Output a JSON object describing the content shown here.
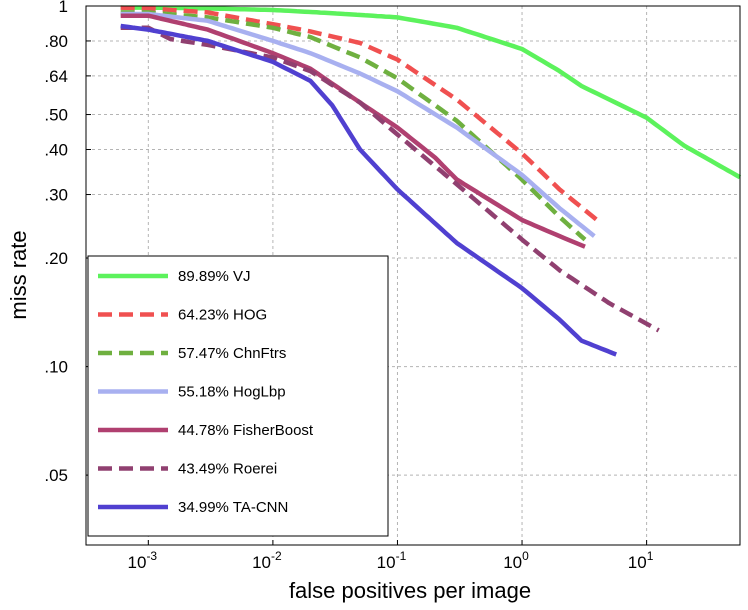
{
  "chart_data": {
    "type": "line",
    "title": "",
    "xlabel": "false positives per image",
    "ylabel": "miss rate",
    "xscale": "log",
    "yscale": "log",
    "xlim": [
      0.000316,
      56.2
    ],
    "ylim": [
      0.032,
      1.0
    ],
    "grid": true,
    "legend_position": "bottom-left",
    "x_ticks": [
      {
        "value": 0.001,
        "base": "10",
        "exp": "-3"
      },
      {
        "value": 0.01,
        "base": "10",
        "exp": "-2"
      },
      {
        "value": 0.1,
        "base": "10",
        "exp": "-1"
      },
      {
        "value": 1,
        "base": "10",
        "exp": "0"
      },
      {
        "value": 10,
        "base": "10",
        "exp": "1"
      }
    ],
    "y_ticks": [
      {
        "value": 1.0,
        "label": "1"
      },
      {
        "value": 0.8,
        "label": ".80"
      },
      {
        "value": 0.64,
        "label": ".64"
      },
      {
        "value": 0.5,
        "label": ".50"
      },
      {
        "value": 0.4,
        "label": ".40"
      },
      {
        "value": 0.3,
        "label": ".30"
      },
      {
        "value": 0.2,
        "label": ".20"
      },
      {
        "value": 0.1,
        "label": ".10"
      },
      {
        "value": 0.05,
        "label": ".05"
      }
    ],
    "series": [
      {
        "name": "VJ",
        "label": "89.89% VJ",
        "color": "#5cf25c",
        "dash": "solid",
        "x": [
          0.0006,
          0.001,
          0.003,
          0.01,
          0.03,
          0.1,
          0.3,
          1,
          2,
          3,
          10,
          20,
          56.2
        ],
        "y": [
          0.99,
          0.99,
          0.985,
          0.975,
          0.955,
          0.93,
          0.87,
          0.76,
          0.66,
          0.6,
          0.49,
          0.41,
          0.335
        ]
      },
      {
        "name": "HOG",
        "label": "64.23% HOG",
        "color": "#f05050",
        "dash": "dash",
        "x": [
          0.0006,
          0.001,
          0.003,
          0.01,
          0.02,
          0.05,
          0.1,
          0.3,
          1,
          2,
          4
        ],
        "y": [
          0.99,
          0.985,
          0.96,
          0.89,
          0.85,
          0.79,
          0.71,
          0.55,
          0.39,
          0.31,
          0.255
        ]
      },
      {
        "name": "ChnFtrs",
        "label": "57.47% ChnFtrs",
        "color": "#6fb040",
        "dash": "dash",
        "x": [
          0.0006,
          0.001,
          0.003,
          0.01,
          0.02,
          0.05,
          0.1,
          0.3,
          1,
          2,
          3.2
        ],
        "y": [
          0.96,
          0.96,
          0.93,
          0.87,
          0.82,
          0.72,
          0.63,
          0.48,
          0.33,
          0.26,
          0.225
        ]
      },
      {
        "name": "HogLbp",
        "label": "55.18% HogLbp",
        "color": "#a8b0f0",
        "dash": "solid",
        "x": [
          0.0006,
          0.001,
          0.003,
          0.01,
          0.02,
          0.05,
          0.1,
          0.3,
          1,
          2,
          3.8
        ],
        "y": [
          0.95,
          0.95,
          0.91,
          0.8,
          0.74,
          0.65,
          0.58,
          0.46,
          0.34,
          0.275,
          0.23
        ]
      },
      {
        "name": "FisherBoost",
        "label": "44.78% FisherBoost",
        "color": "#b04070",
        "dash": "solid",
        "x": [
          0.0006,
          0.001,
          0.003,
          0.01,
          0.02,
          0.05,
          0.1,
          0.2,
          0.3,
          1,
          2,
          3.2
        ],
        "y": [
          0.94,
          0.94,
          0.86,
          0.74,
          0.67,
          0.54,
          0.46,
          0.38,
          0.33,
          0.255,
          0.23,
          0.215
        ]
      },
      {
        "name": "Roerei",
        "label": "43.49% Roerei",
        "color": "#904070",
        "dash": "dash",
        "x": [
          0.0006,
          0.001,
          0.0015,
          0.003,
          0.01,
          0.02,
          0.05,
          0.1,
          0.3,
          1,
          2,
          5,
          12.5
        ],
        "y": [
          0.87,
          0.87,
          0.81,
          0.78,
          0.72,
          0.66,
          0.54,
          0.44,
          0.32,
          0.225,
          0.185,
          0.15,
          0.126
        ]
      },
      {
        "name": "TA-CNN",
        "label": "34.99% TA-CNN",
        "color": "#5040d0",
        "dash": "solid",
        "x": [
          0.0006,
          0.001,
          0.003,
          0.01,
          0.02,
          0.03,
          0.05,
          0.1,
          0.3,
          1,
          2,
          3,
          5.7
        ],
        "y": [
          0.88,
          0.86,
          0.8,
          0.7,
          0.62,
          0.53,
          0.4,
          0.31,
          0.22,
          0.165,
          0.135,
          0.118,
          0.108
        ]
      }
    ]
  }
}
